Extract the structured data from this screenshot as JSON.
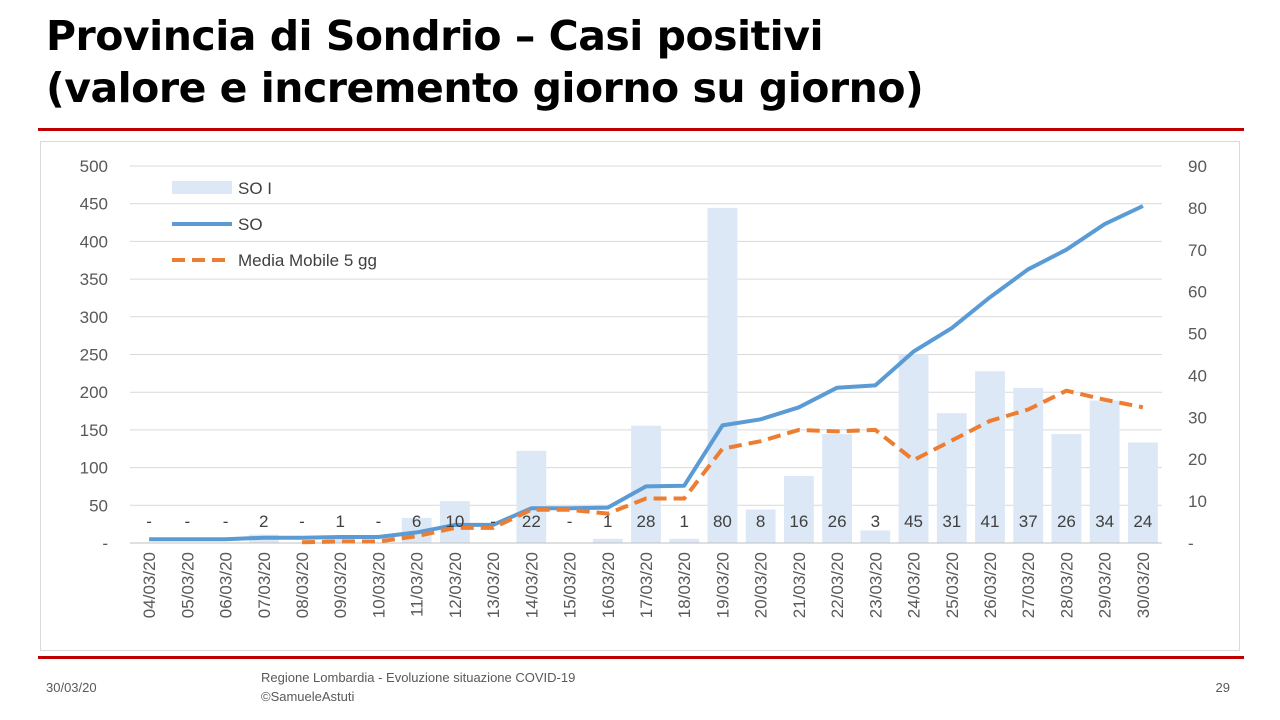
{
  "slide": {
    "title_line1": "Provincia di Sondrio – Casi positivi",
    "title_line2": "(valore e incremento giorno su giorno)",
    "footer_date": "30/03/20",
    "footer_source_line1": "Regione Lombardia - Evoluzione situazione COVID-19",
    "footer_source_line2": "©SamueleAstuti",
    "page_number": "29",
    "accent_color": "#c00000"
  },
  "chart_data": {
    "type": "bar+line",
    "categories": [
      "04/03/20",
      "05/03/20",
      "06/03/20",
      "07/03/20",
      "08/03/20",
      "09/03/20",
      "10/03/20",
      "11/03/20",
      "12/03/20",
      "13/03/20",
      "14/03/20",
      "15/03/20",
      "16/03/20",
      "17/03/20",
      "18/03/20",
      "19/03/20",
      "20/03/20",
      "21/03/20",
      "22/03/20",
      "23/03/20",
      "24/03/20",
      "25/03/20",
      "26/03/20",
      "27/03/20",
      "28/03/20",
      "29/03/20",
      "30/03/20"
    ],
    "series": [
      {
        "name": "SO I",
        "kind": "bar",
        "axis": "right",
        "color": "#dce8f5",
        "values": [
          0,
          0,
          0,
          2,
          0,
          1,
          0,
          6,
          10,
          0,
          22,
          0,
          1,
          28,
          1,
          80,
          8,
          16,
          26,
          3,
          45,
          31,
          41,
          37,
          26,
          34,
          24
        ]
      },
      {
        "name": "SO",
        "kind": "line",
        "axis": "left",
        "color": "#5b9bd5",
        "dash": false,
        "values": [
          5,
          5,
          5,
          7,
          7,
          8,
          8,
          14,
          24,
          24,
          46,
          46,
          47,
          75,
          76,
          156,
          164,
          180,
          206,
          209,
          254,
          285,
          326,
          363,
          389,
          423,
          447
        ]
      },
      {
        "name": "Media Mobile 5 gg",
        "kind": "line",
        "axis": "left",
        "color": "#ed7d31",
        "dash": true,
        "values": [
          null,
          null,
          null,
          null,
          1,
          2,
          2,
          9,
          20,
          20,
          44,
          44,
          39,
          59,
          59,
          125,
          135,
          150,
          148,
          150,
          110,
          136,
          162,
          177,
          202,
          190,
          180
        ]
      }
    ],
    "data_labels": [
      "-",
      "-",
      "-",
      "2",
      "-",
      "1",
      "-",
      "6",
      "10",
      "-",
      "22",
      "-",
      "1",
      "28",
      "1",
      "80",
      "8",
      "16",
      "26",
      "3",
      "45",
      "31",
      "41",
      "37",
      "26",
      "34",
      "24"
    ],
    "left_axis": {
      "min": 0,
      "max": 500,
      "ticks": [
        "-",
        "50",
        "100",
        "150",
        "200",
        "250",
        "300",
        "350",
        "400",
        "450",
        "500"
      ]
    },
    "right_axis": {
      "min": 0,
      "max": 90,
      "ticks": [
        "-",
        "10",
        "20",
        "30",
        "40",
        "50",
        "60",
        "70",
        "80",
        "90"
      ]
    },
    "grid": true,
    "legend_position": "top-left"
  }
}
